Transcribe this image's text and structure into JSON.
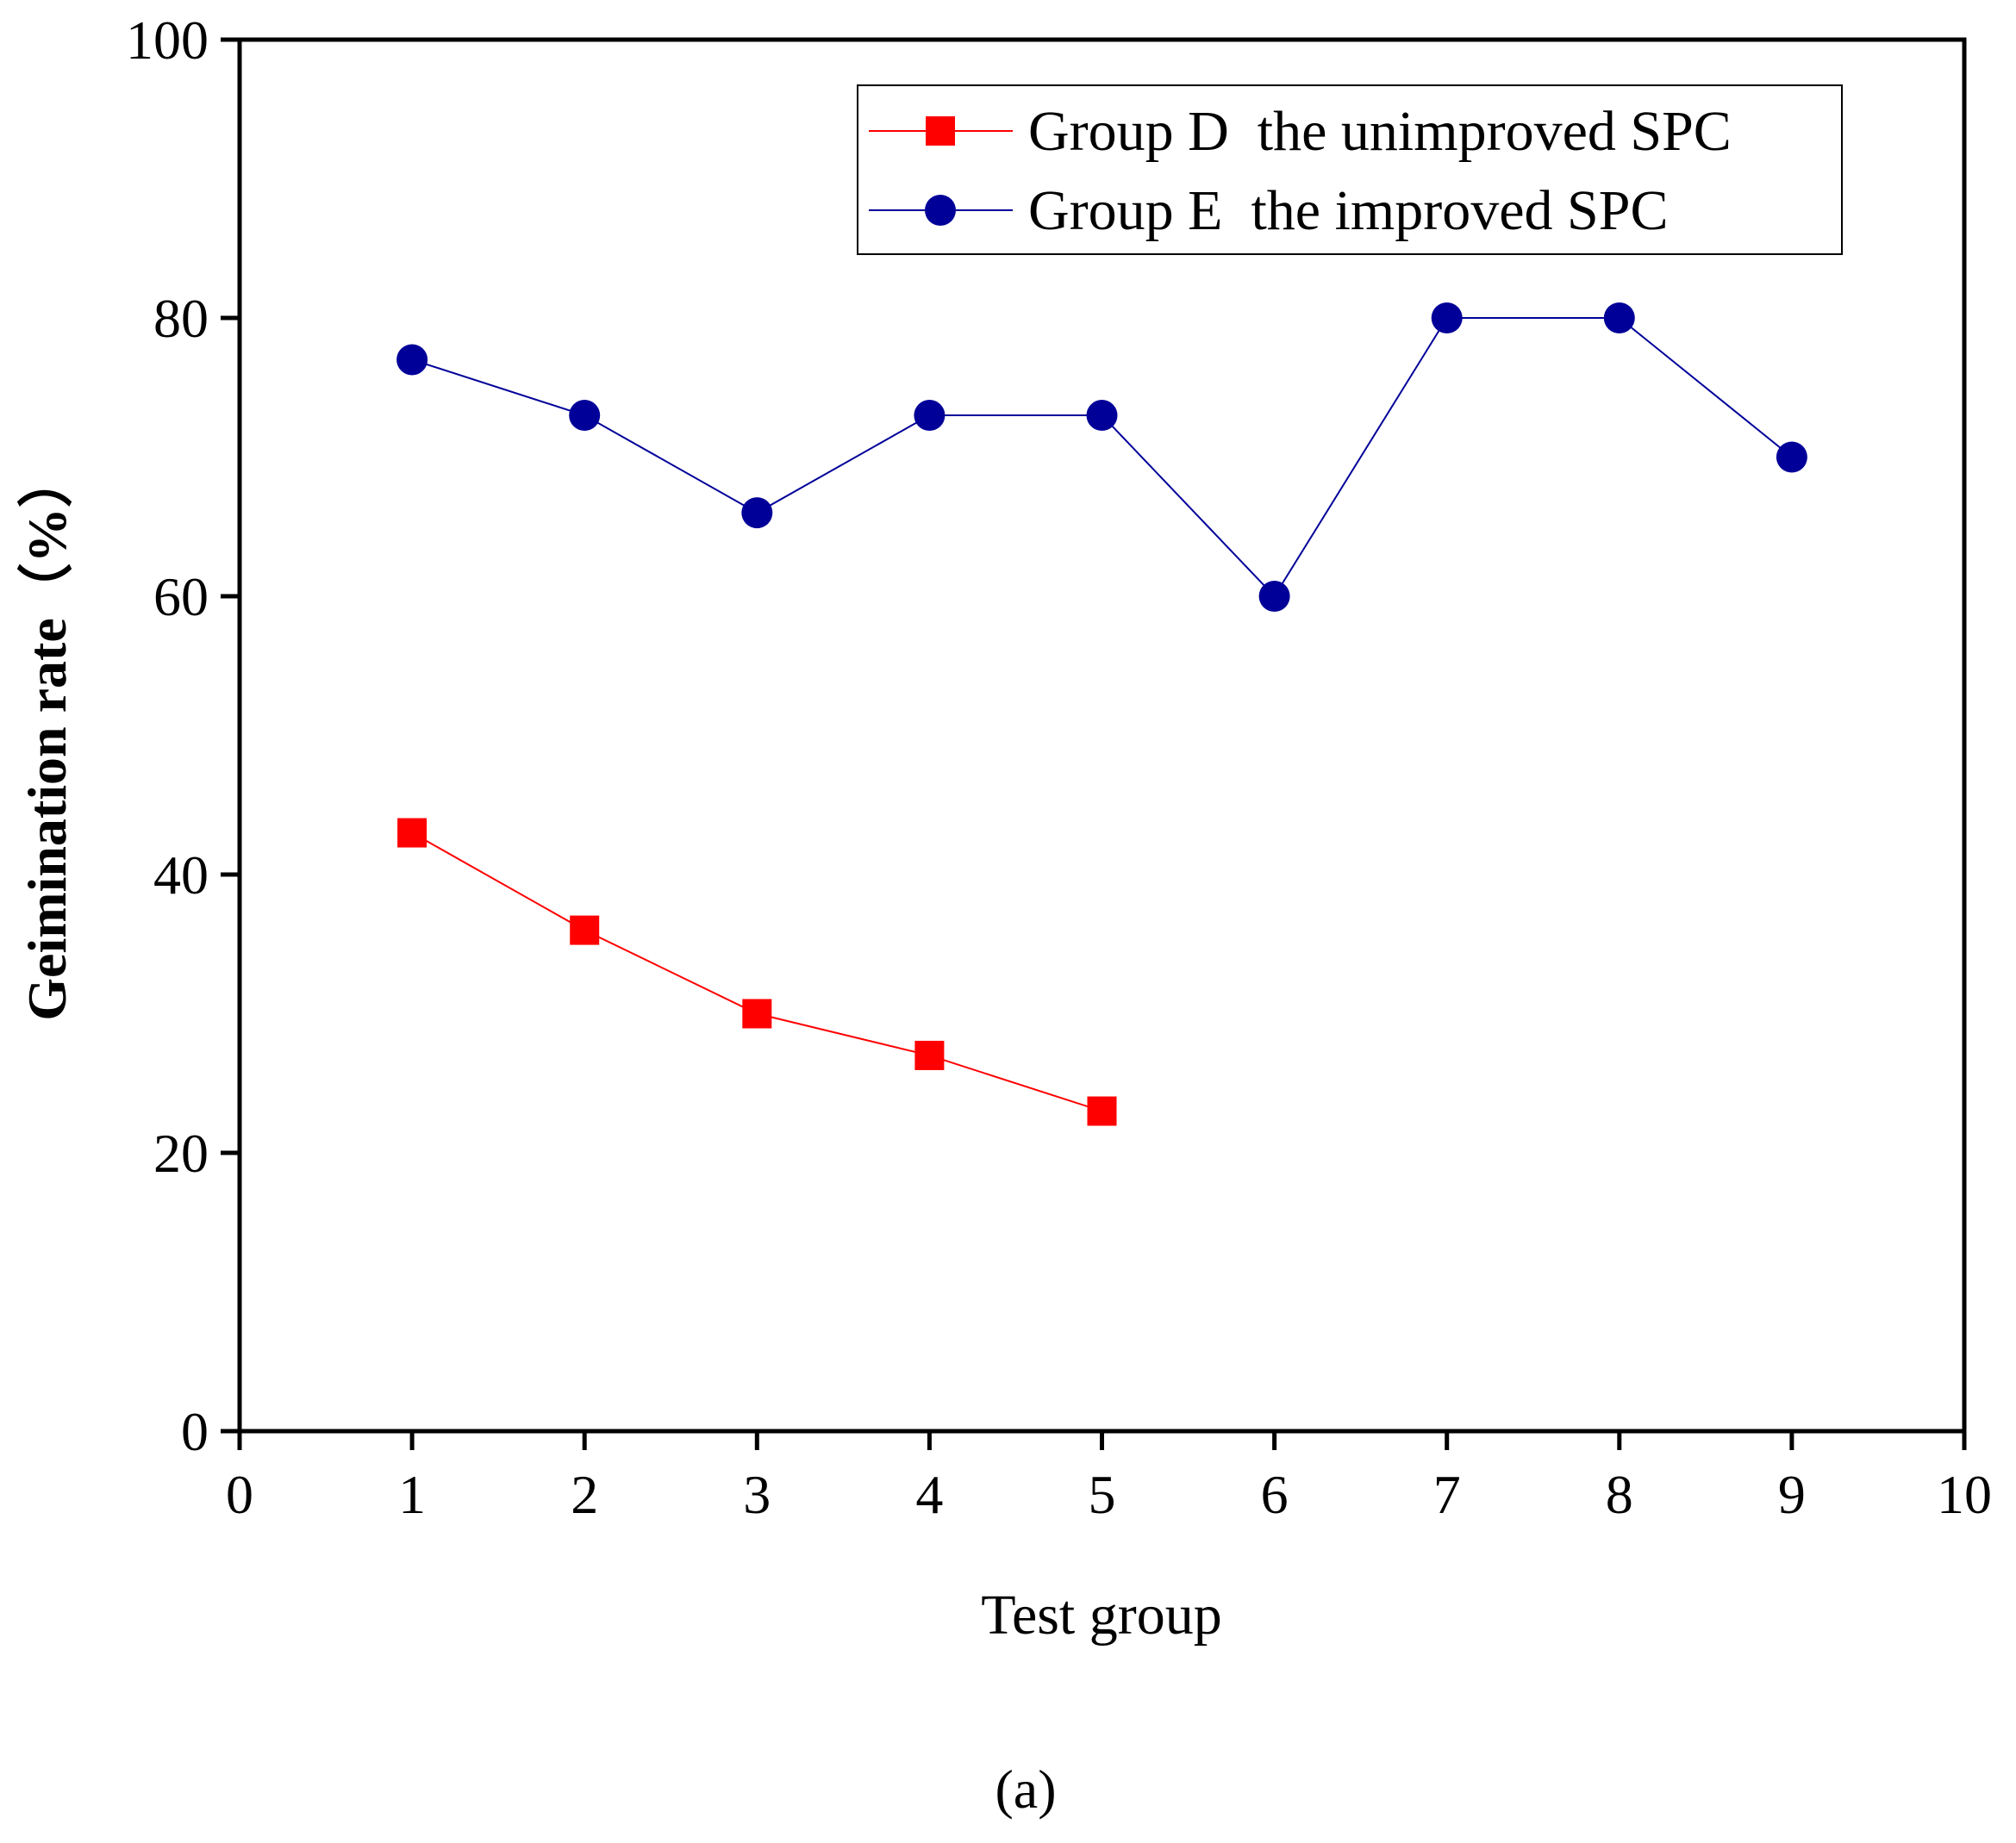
{
  "chart_data": {
    "type": "line",
    "title": "",
    "xlabel": "Test group",
    "ylabel": "Geimination rate（%）",
    "xlim": [
      0,
      10
    ],
    "ylim": [
      0,
      100
    ],
    "x_ticks": [
      "0",
      "1",
      "2",
      "3",
      "4",
      "5",
      "6",
      "7",
      "8",
      "9",
      "10"
    ],
    "y_ticks": [
      "0",
      "20",
      "40",
      "60",
      "80",
      "100"
    ],
    "grid": false,
    "legend_position": "top-right",
    "series": [
      {
        "name": "Group D  the unimproved SPC",
        "color": "#ff0000",
        "marker": "square",
        "x": [
          1,
          2,
          3,
          4,
          5
        ],
        "values": [
          43,
          36,
          30,
          27,
          23
        ]
      },
      {
        "name": "Group E  the improved SPC",
        "color": "#000099",
        "marker": "circle",
        "x": [
          1,
          2,
          3,
          4,
          5,
          6,
          7,
          8,
          9
        ],
        "values": [
          77,
          73,
          66,
          73,
          73,
          60,
          80,
          80,
          70
        ]
      }
    ]
  },
  "caption": "(a)"
}
